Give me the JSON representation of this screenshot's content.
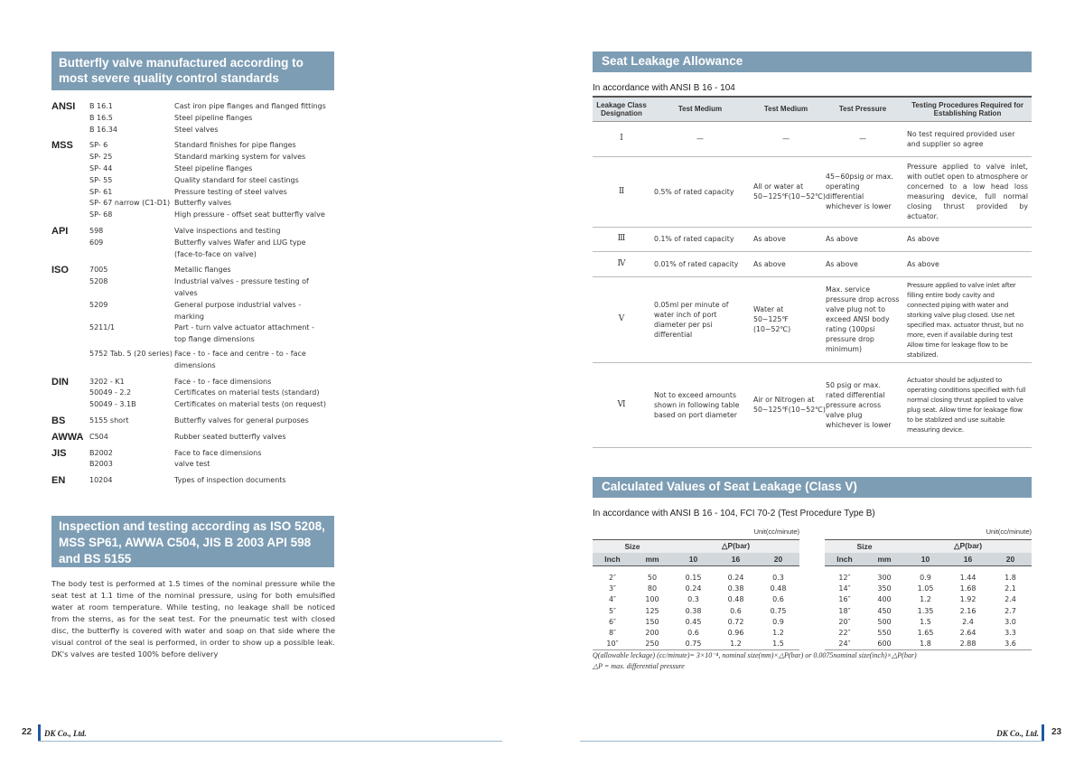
{
  "left": {
    "heading1": "Butterfly valve manufactured according to most severe quality control standards",
    "standards": [
      {
        "org": "ANSI",
        "items": [
          {
            "code": "B 16.1",
            "desc": "Cast iron pipe flanges and flanged fittings"
          },
          {
            "code": "B 16.5",
            "desc": "Steel pipeline flanges"
          },
          {
            "code": "B 16.34",
            "desc": "Steel valves"
          }
        ]
      },
      {
        "org": "MSS",
        "items": [
          {
            "code": "SP- 6",
            "desc": "Standard finishes for pipe flanges"
          },
          {
            "code": "SP- 25",
            "desc": "Standard marking system for valves"
          },
          {
            "code": "SP- 44",
            "desc": "Steel pipeline flanges"
          },
          {
            "code": "SP- 55",
            "desc": "Quality standard for steel castings"
          },
          {
            "code": "SP- 61",
            "desc": "Pressure testing of steel valves"
          },
          {
            "code": "SP- 67 narrow (C1-D1)",
            "desc": "Butterfly valves"
          },
          {
            "code": "SP- 68",
            "desc": "High pressure - offset seat butterfly valve"
          }
        ]
      },
      {
        "org": "API",
        "items": [
          {
            "code": "598",
            "desc": "Valve inspections and testing"
          },
          {
            "code": "609",
            "desc": "Butterfly valves Wafer and LUG type (face-to-face on valve)"
          }
        ]
      },
      {
        "org": "ISO",
        "items": [
          {
            "code": "7005",
            "desc": "Metallic flanges"
          },
          {
            "code": "5208",
            "desc": "Industrial valves - pressure testing of valves"
          },
          {
            "code": "5209",
            "desc": "General purpose industrial valves - marking"
          },
          {
            "code": "5211/1",
            "desc": "Part - turn valve actuator attachment - top flange dimensions"
          },
          {
            "code": "5752 Tab. 5 (20 series)",
            "desc": "Face - to - face and centre - to - face dimensions"
          }
        ]
      },
      {
        "org": "DIN",
        "items": [
          {
            "code": "3202 - K1",
            "desc": "Face - to - face dimensions"
          },
          {
            "code": "50049 - 2.2",
            "desc": "Certificates on material tests (standard)"
          },
          {
            "code": "50049 - 3.1B",
            "desc": "Certificates on material tests (on request)"
          }
        ]
      },
      {
        "org": "BS",
        "items": [
          {
            "code": "5155 short",
            "desc": "Butterfly valves for general purposes"
          }
        ]
      },
      {
        "org": "AWWA",
        "items": [
          {
            "code": "C504",
            "desc": "Rubber seated butterfly valves"
          }
        ]
      },
      {
        "org": "JIS",
        "items": [
          {
            "code": "B2002",
            "desc": "Face to face dimensions"
          },
          {
            "code": "B2003",
            "desc": "valve test"
          }
        ]
      },
      {
        "org": "EN",
        "items": [
          {
            "code": "10204",
            "desc": "Types of inspection documents"
          }
        ]
      }
    ],
    "heading2": "Inspection and testing according as ISO 5208, MSS SP61, AWWA C504, JIS B 2003 API 598 and BS 5155",
    "paragraph": "The body test is performed at 1.5 times of the nominal pressure while the seat test at 1.1 time of the nominal pressure, using for both emulsified water at room temperature. While testing, no leakage shall be noticed from the stems, as for the seat test. For the pneumatic test with closed disc, the butterfly is covered with water and soap on that side where the visual control of the seal is performed, in order to show up a possible leak. DK's valves are tested 100% before delivery"
  },
  "right": {
    "heading1": "Seat Leakage Allowance",
    "subtitle1": "In accordance with ANSI B 16 - 104",
    "leakage_table": {
      "headers": [
        "Leakage Class Designation",
        "Test Medium",
        "Test Medium",
        "Test Pressure",
        "Testing Procedures Required for Establishing Ration"
      ],
      "rows": [
        [
          "Ⅰ",
          "—",
          "—",
          "—",
          "No test required provided user and supplier so agree"
        ],
        [
          "Ⅱ",
          "0.5% of rated capacity",
          "All or water at 50~125℉(10~52℃)",
          "45~60psig or max. operating differential whichever is lower",
          "Pressure applied to valve inlet, with outlet open to atmosphere or concerned to a low head loss measuring device, full normal closing thrust provided by actuator."
        ],
        [
          "Ⅲ",
          "0.1% of rated capacity",
          "As above",
          "As above",
          "As above"
        ],
        [
          "Ⅳ",
          "0.01% of rated capacity",
          "As above",
          "As above",
          "As above"
        ],
        [
          "Ⅴ",
          "0.05ml per minute of water inch of port diameter per psi differential",
          "Water at 50~125℉ (10~52℃)",
          "Max. service pressure drop across valve plug not to exceed ANSI body rating (100psi pressure drop minimum)",
          "Pressure applied to valve inlet after filling entire body cavity and connected piping with water and storking valve plug closed. Use net specified max. actuator thrust, but no more, even if available during test Allow time for leakage flow to be stabilized."
        ],
        [
          "Ⅵ",
          "Not to exceed amounts shown in following table based on port diameter",
          "Air or Nitrogen at 50~125℉(10~52℃)",
          "50 psig or max. rated differential pressure across valve plug whichever is lower",
          "Actuator should be adjusted to operating conditions specified with full normal closing thrust applied to valve plug seat. Allow time for leakage flow to be stablized and use suitable measuring device."
        ]
      ]
    },
    "heading2": "Calculated Values of Seat Leakage (Class V)",
    "subtitle2": "In accordance with ANSI B 16 - 104, FCI 70-2 (Test Procedure Type B)",
    "seat_tables": [
      {
        "unit": "Unit(cc/minute)",
        "group_headers": [
          "Size",
          "△P(bar)"
        ],
        "headers": [
          "Inch",
          "mm",
          "10",
          "16",
          "20"
        ],
        "rows": [
          [
            "2″",
            "50",
            "0.15",
            "0.24",
            "0.3"
          ],
          [
            "3″",
            "80",
            "0.24",
            "0.38",
            "0.48"
          ],
          [
            "4″",
            "100",
            "0.3",
            "0.48",
            "0.6"
          ],
          [
            "5″",
            "125",
            "0.38",
            "0.6",
            "0.75"
          ],
          [
            "6″",
            "150",
            "0.45",
            "0.72",
            "0.9"
          ],
          [
            "8″",
            "200",
            "0.6",
            "0.96",
            "1.2"
          ],
          [
            "10″",
            "250",
            "0.75",
            "1.2",
            "1.5"
          ]
        ]
      },
      {
        "unit": "Unit(cc/minute)",
        "group_headers": [
          "Size",
          "△P(bar)"
        ],
        "headers": [
          "Inch",
          "mm",
          "10",
          "16",
          "20"
        ],
        "rows": [
          [
            "12″",
            "300",
            "0.9",
            "1.44",
            "1.8"
          ],
          [
            "14″",
            "350",
            "1.05",
            "1.68",
            "2.1"
          ],
          [
            "16″",
            "400",
            "1.2",
            "1.92",
            "2.4"
          ],
          [
            "18″",
            "450",
            "1.35",
            "2.16",
            "2.7"
          ],
          [
            "20″",
            "500",
            "1.5",
            "2.4",
            "3.0"
          ],
          [
            "22″",
            "550",
            "1.65",
            "2.64",
            "3.3"
          ],
          [
            "24″",
            "600",
            "1.8",
            "2.88",
            "3.6"
          ]
        ]
      }
    ],
    "formula": "Q(allowable leckage) (cc/minute)= 3×10⁻⁴,  nominal size(mm)×△P(bar) or 0.0075nominal size(inch)×△P(bar)",
    "note": "△P = max. differential pressure"
  },
  "footer": {
    "left_page": "22",
    "right_page": "23",
    "company": "DK Co., Ltd."
  }
}
